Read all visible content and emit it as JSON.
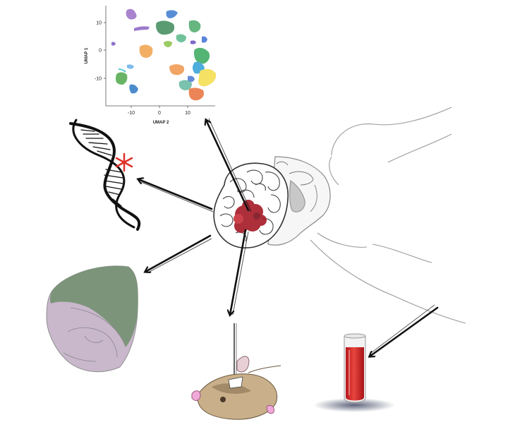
{
  "umap_plot": {
    "xlabel": "UMAP 2",
    "ylabel": "UMAP 1",
    "xticks": [
      "-10",
      "0",
      "10"
    ],
    "yticks": [
      "10",
      "0",
      "-10"
    ]
  },
  "panels": {
    "center": "brain-tumor-patient-head",
    "top": "umap-single-cell-clusters",
    "left": "dna-double-helix-with-mutation-star",
    "lower-left": "brain-tissue-section",
    "bottom": "mouse-with-implanted-electrode",
    "bottom-right": "blood-sample-tube"
  },
  "colors": {
    "arrow": "#111111",
    "tumor": "#a51e2a",
    "mutation_star": "#e0302a",
    "blood": "#d42a2a",
    "tissue_green": "#6f8f6b",
    "tissue_purple": "#c9b7cc"
  }
}
